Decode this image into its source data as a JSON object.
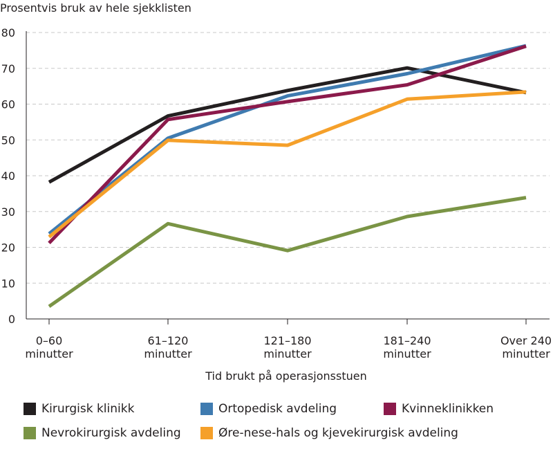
{
  "chart_data": {
    "type": "line",
    "title": "",
    "ylabel": "Prosentvis bruk av hele sjekklisten",
    "xlabel": "Tid brukt på operasjonsstuen",
    "ylim": [
      0,
      80
    ],
    "yticks": [
      0,
      10,
      20,
      30,
      40,
      50,
      60,
      70,
      80
    ],
    "grid": true,
    "categories": [
      [
        "0–60",
        "minutter"
      ],
      [
        "61–120",
        "minutter"
      ],
      [
        "121–180",
        "minutter"
      ],
      [
        "181–240",
        "minutter"
      ],
      [
        "Over 240",
        "minutter"
      ]
    ],
    "series": [
      {
        "name": "Kirurgisk klinikk",
        "color": "#231f20",
        "values": [
          38.2,
          56.7,
          63.8,
          70.1,
          63.2
        ]
      },
      {
        "name": "Ortopedisk avdeling",
        "color": "#3f7bb0",
        "values": [
          23.8,
          50.5,
          62.3,
          68.5,
          76.3
        ]
      },
      {
        "name": "Kvinneklinikken",
        "color": "#8b1a4b",
        "values": [
          21.2,
          55.7,
          60.7,
          65.4,
          76.2
        ]
      },
      {
        "name": "Nevrokirurgisk avdeling",
        "color": "#7a9445",
        "values": [
          3.5,
          26.6,
          19.1,
          28.6,
          33.9
        ]
      },
      {
        "name": "Øre-nese-hals og kjevekirurgisk avdeling",
        "color": "#f5a02a",
        "values": [
          22.9,
          49.9,
          48.5,
          61.4,
          63.4
        ]
      }
    ],
    "legend_position": "bottom"
  }
}
